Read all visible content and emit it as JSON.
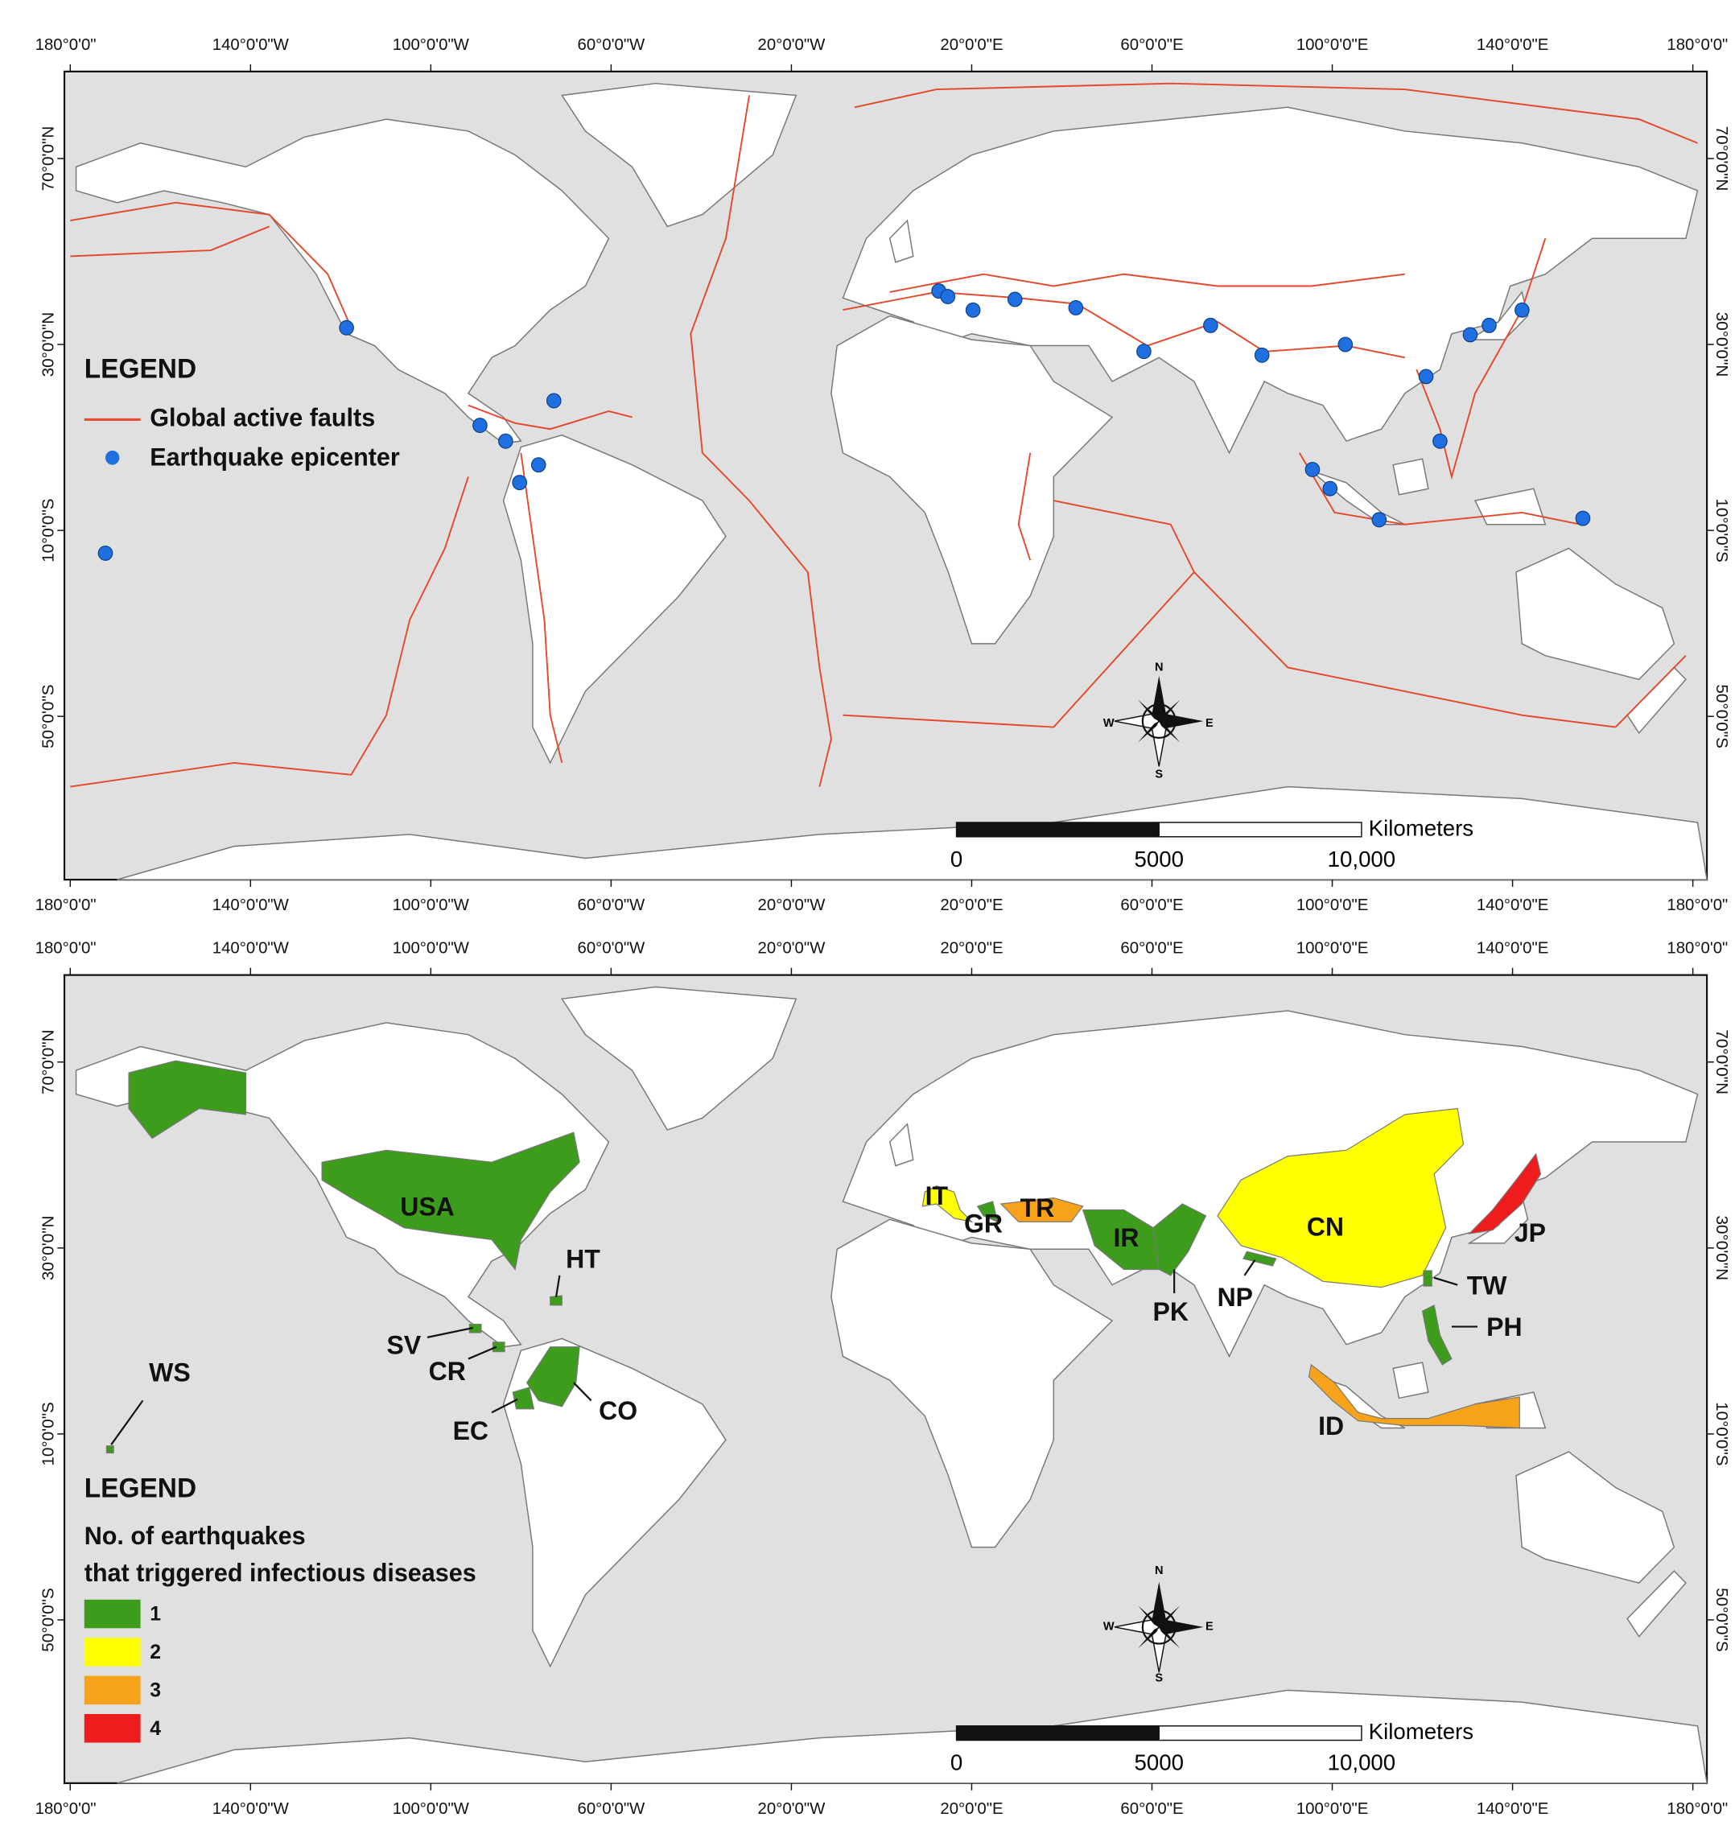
{
  "graticule": {
    "lon_ticks": [
      {
        "value": -180,
        "label": "180°0'0\""
      },
      {
        "value": -140,
        "label": "140°0'0\"W"
      },
      {
        "value": -100,
        "label": "100°0'0\"W"
      },
      {
        "value": -60,
        "label": "60°0'0\"W"
      },
      {
        "value": -20,
        "label": "20°0'0\"W"
      },
      {
        "value": 20,
        "label": "20°0'0\"E"
      },
      {
        "value": 60,
        "label": "60°0'0\"E"
      },
      {
        "value": 100,
        "label": "100°0'0\"E"
      },
      {
        "value": 140,
        "label": "140°0'0\"E"
      },
      {
        "value": 180,
        "label": "180°0'0\""
      }
    ],
    "lat_ticks": [
      {
        "value": 70,
        "label": "70°0'0\"N"
      },
      {
        "value": 30,
        "label": "30°0'0\"N"
      },
      {
        "value": -10,
        "label": "10°0'0\"S"
      },
      {
        "value": -50,
        "label": "50°0'0\"S"
      }
    ]
  },
  "compass": {
    "n": "N",
    "e": "E",
    "s": "S",
    "w": "W"
  },
  "scale_bar": {
    "unit": "Kilometers",
    "ticks": [
      0,
      5000,
      {
        "value": 10000,
        "label": "10,000"
      }
    ]
  },
  "faults_map": {
    "legend": {
      "title": "LEGEND",
      "faults": "Global active faults",
      "epicenter": "Earthquake epicenter"
    },
    "fault_color": "#e5472b",
    "epicenter_color": "#1f6fe0",
    "epicenters": [
      {
        "lon": -118.7,
        "lat": 33.6
      },
      {
        "lon": -172.2,
        "lat": -14.9
      },
      {
        "lon": -72.7,
        "lat": 17.9
      },
      {
        "lon": -89.1,
        "lat": 12.6
      },
      {
        "lon": -83.4,
        "lat": 9.2
      },
      {
        "lon": -76.1,
        "lat": 4.1
      },
      {
        "lon": -80.3,
        "lat": 0.3
      },
      {
        "lon": 12.7,
        "lat": 41.5
      },
      {
        "lon": 14.7,
        "lat": 40.3
      },
      {
        "lon": 20.3,
        "lat": 37.4
      },
      {
        "lon": 29.6,
        "lat": 39.7
      },
      {
        "lon": 43.1,
        "lat": 37.9
      },
      {
        "lon": 58.2,
        "lat": 28.5
      },
      {
        "lon": 73.0,
        "lat": 34.1
      },
      {
        "lon": 84.4,
        "lat": 27.7
      },
      {
        "lon": 102.9,
        "lat": 30.0
      },
      {
        "lon": 120.8,
        "lat": 23.1
      },
      {
        "lon": 123.9,
        "lat": 9.2
      },
      {
        "lon": 130.6,
        "lat": 32.1
      },
      {
        "lon": 134.8,
        "lat": 34.1
      },
      {
        "lon": 142.1,
        "lat": 37.4
      },
      {
        "lon": 95.6,
        "lat": 3.1
      },
      {
        "lon": 99.5,
        "lat": -1.0
      },
      {
        "lon": 110.4,
        "lat": -7.7
      },
      {
        "lon": 155.6,
        "lat": -7.4
      }
    ]
  },
  "disease_map": {
    "legend": {
      "title": "LEGEND",
      "subtitle_line1": "No. of earthquakes",
      "subtitle_line2": "that triggered infectious diseases",
      "classes": [
        {
          "value": 1,
          "color": "#3d9c1c"
        },
        {
          "value": 2,
          "color": "#ffff00"
        },
        {
          "value": 3,
          "color": "#f7a21b"
        },
        {
          "value": 4,
          "color": "#ee1c1c"
        }
      ]
    },
    "countries": [
      {
        "code": "USA",
        "count": 1
      },
      {
        "code": "HT",
        "count": 1
      },
      {
        "code": "SV",
        "count": 1
      },
      {
        "code": "CR",
        "count": 1
      },
      {
        "code": "CO",
        "count": 1
      },
      {
        "code": "EC",
        "count": 1
      },
      {
        "code": "WS",
        "count": 1
      },
      {
        "code": "IT",
        "count": 2
      },
      {
        "code": "GR",
        "count": 1
      },
      {
        "code": "TR",
        "count": 3
      },
      {
        "code": "IR",
        "count": 1
      },
      {
        "code": "PK",
        "count": 1
      },
      {
        "code": "NP",
        "count": 1
      },
      {
        "code": "CN",
        "count": 2
      },
      {
        "code": "JP",
        "count": 4
      },
      {
        "code": "TW",
        "count": 1
      },
      {
        "code": "PH",
        "count": 1
      },
      {
        "code": "ID",
        "count": 3
      }
    ]
  }
}
